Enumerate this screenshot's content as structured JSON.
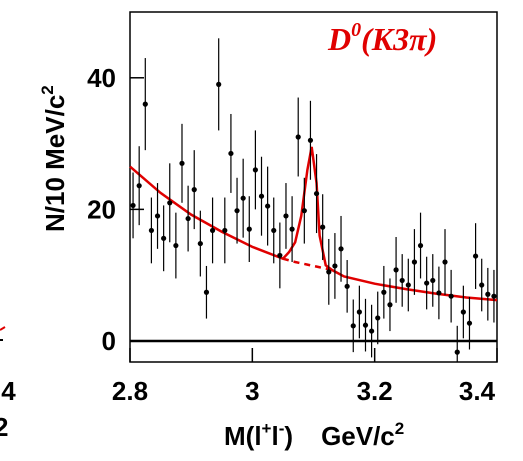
{
  "chart_data": {
    "type": "errorbar",
    "title": "D",
    "title_sup": "0",
    "title_rest": "(K3π)",
    "x_label": "M(l",
    "x_label_sup1": "+",
    "x_label_mid": "l",
    "x_label_sup2": "-",
    "x_label_close": ")",
    "x_label_unit": "GeV/c",
    "x_label_unit_sup": "2",
    "y_label": "N/10 MeV/c",
    "y_label_sup": "2",
    "cropped_labels": [
      ".4",
      "2"
    ],
    "xlim": [
      2.8,
      3.4
    ],
    "xticks": [
      2.8,
      3,
      3.2,
      3.4
    ],
    "ylim": [
      -3.2,
      50
    ],
    "yticks": [
      0,
      20,
      40
    ],
    "x": [
      2.805,
      2.815,
      2.825,
      2.835,
      2.845,
      2.855,
      2.865,
      2.875,
      2.885,
      2.895,
      2.905,
      2.915,
      2.925,
      2.935,
      2.945,
      2.955,
      2.965,
      2.975,
      2.985,
      2.995,
      3.005,
      3.015,
      3.025,
      3.035,
      3.045,
      3.055,
      3.065,
      3.075,
      3.085,
      3.095,
      3.105,
      3.115,
      3.125,
      3.135,
      3.145,
      3.155,
      3.165,
      3.175,
      3.185,
      3.195,
      3.205,
      3.215,
      3.225,
      3.235,
      3.245,
      3.255,
      3.265,
      3.275,
      3.285,
      3.295,
      3.305,
      3.315,
      3.325,
      3.335,
      3.345,
      3.355,
      3.365,
      3.375,
      3.385,
      3.395
    ],
    "values": [
      20.6,
      23.6,
      36,
      16.8,
      19,
      15.6,
      21,
      14.5,
      27,
      18.6,
      23,
      14.8,
      7.4,
      16.8,
      39,
      16.8,
      28.5,
      19.8,
      21.7,
      17,
      26,
      22,
      20.5,
      16.8,
      13,
      19,
      17,
      31,
      19.8,
      30.5,
      22.4,
      17.3,
      10.5,
      11.4,
      14,
      8.3,
      2.3,
      4.4,
      2.4,
      1.5,
      3.5,
      7.4,
      5.5,
      10.8,
      9.2,
      8.5,
      12,
      14.5,
      8.8,
      9.2,
      7.3,
      12,
      6.8,
      -1.7,
      4.4,
      2.7,
      12.9,
      8.5,
      7.1,
      6.8
    ],
    "errors": [
      5,
      6,
      7,
      5,
      5,
      5,
      6,
      5,
      6,
      5,
      6,
      5,
      4,
      5,
      7,
      5,
      6,
      5,
      6,
      5,
      6,
      6,
      6,
      5,
      5,
      5,
      5,
      6,
      5,
      6,
      6,
      5,
      5,
      5,
      5,
      4,
      4,
      4,
      4,
      4,
      4,
      4,
      4,
      5,
      4,
      4,
      5,
      5,
      4,
      4,
      4,
      5,
      4,
      4,
      4,
      4,
      5,
      4,
      4,
      4
    ],
    "marker_color": "#000000",
    "fit": {
      "color": "#e00000",
      "x": [
        2.8,
        2.85,
        2.9,
        2.95,
        3.0,
        3.05,
        3.06,
        3.07,
        3.08,
        3.09,
        3.097,
        3.105,
        3.11,
        3.12,
        3.13,
        3.15,
        3.2,
        3.25,
        3.3,
        3.35,
        3.4
      ],
      "values": [
        26.5,
        22.5,
        19.2,
        16.6,
        14.3,
        12.5,
        13.5,
        15,
        19,
        26,
        29.5,
        24,
        16,
        11.5,
        10.8,
        9.8,
        8.7,
        7.9,
        7.2,
        6.6,
        6.2
      ]
    },
    "background": {
      "color": "#e00000",
      "x": [
        3.05,
        3.07,
        3.09,
        3.11,
        3.13
      ],
      "values": [
        12.5,
        12,
        11.6,
        11.2,
        10.8
      ]
    }
  }
}
